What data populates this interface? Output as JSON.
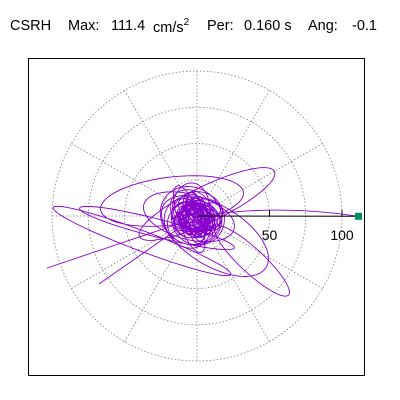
{
  "header": {
    "station": "CSRH",
    "max_label": "Max:",
    "max_value": "111.4",
    "max_unit_base": "cm/s",
    "max_unit_exp": "2",
    "per_label": "Per:",
    "per_value": "0.160 s",
    "ang_label": "Ang:",
    "ang_value": "-0.1"
  },
  "chart_data": {
    "type": "polar-orbit",
    "radial_max": 111.4,
    "radial_ticks": [
      50,
      100
    ],
    "ring_values": [
      25,
      50,
      75,
      100
    ],
    "spoke_step_deg": 30,
    "grid": true,
    "max_angle_deg": -0.1,
    "colors": {
      "trace": "#8800cc",
      "grid": "#808080",
      "axis": "#000000",
      "marker": "#009060"
    }
  }
}
